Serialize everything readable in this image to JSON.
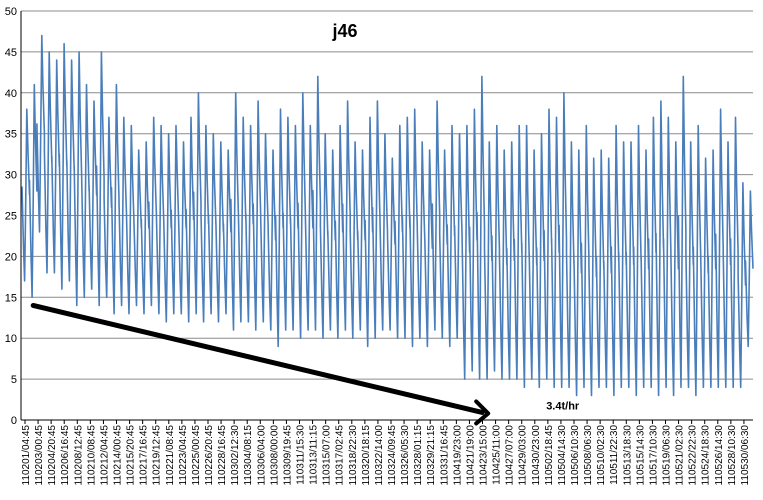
{
  "chart_data": {
    "type": "line",
    "title": "j46",
    "xlabel": "",
    "ylabel": "",
    "ylim": [
      0,
      50
    ],
    "yticks": [
      0,
      5,
      10,
      15,
      20,
      25,
      30,
      35,
      40,
      45,
      50
    ],
    "grid": true,
    "legend": "none",
    "series_color": "#4a7ebb",
    "x_tick_labels": [
      "110201/04:45",
      "110203/00:45",
      "110204/20:45",
      "110206/16:45",
      "110208/12:45",
      "110210/08:45",
      "110212/04:45",
      "110214/00:45",
      "110215/20:45",
      "110217/16:45",
      "110219/12:45",
      "110221/08:45",
      "110223/04:45",
      "110225/00:45",
      "110226/20:45",
      "110228/16:45",
      "110302/12:30",
      "110304/08:15",
      "110306/04:00",
      "110308/00:00",
      "110309/19:45",
      "110311/15:30",
      "110313/11:15",
      "110315/07:00",
      "110317/02:45",
      "110318/22:30",
      "110320/18:15",
      "110322/14:00",
      "110324/09:45",
      "110326/05:30",
      "110328/01:15",
      "110329/21:15",
      "110331/16:45",
      "110419/23:00",
      "110421/19:00",
      "110423/15:00",
      "110425/11:00",
      "110427/07:00",
      "110429/03:00",
      "110430/23:00",
      "110502/18:45",
      "110504/14:30",
      "110506/10:30",
      "110508/06:30",
      "110510/02:30",
      "110511/22:30",
      "110513/18:30",
      "110515/14:30",
      "110517/10:30",
      "110519/06:30",
      "110521/02:30",
      "110522/22:30",
      "110524/18:30",
      "110526/14:30",
      "110528/10:30",
      "110530/06:30"
    ],
    "daily_cycles": [
      {
        "min": 17,
        "max": 38
      },
      {
        "min": 15,
        "max": 41
      },
      {
        "min": 23,
        "max": 47
      },
      {
        "min": 18,
        "max": 45
      },
      {
        "min": 18,
        "max": 44
      },
      {
        "min": 16,
        "max": 46
      },
      {
        "min": 17,
        "max": 44
      },
      {
        "min": 14,
        "max": 45
      },
      {
        "min": 15,
        "max": 41
      },
      {
        "min": 16,
        "max": 39
      },
      {
        "min": 14,
        "max": 45
      },
      {
        "min": 15,
        "max": 37
      },
      {
        "min": 13,
        "max": 41
      },
      {
        "min": 14,
        "max": 37
      },
      {
        "min": 13,
        "max": 36
      },
      {
        "min": 14,
        "max": 33
      },
      {
        "min": 13,
        "max": 34
      },
      {
        "min": 14,
        "max": 37
      },
      {
        "min": 13,
        "max": 36
      },
      {
        "min": 12,
        "max": 35
      },
      {
        "min": 13,
        "max": 36
      },
      {
        "min": 13,
        "max": 34
      },
      {
        "min": 12,
        "max": 37
      },
      {
        "min": 13,
        "max": 40
      },
      {
        "min": 12,
        "max": 36
      },
      {
        "min": 13,
        "max": 35
      },
      {
        "min": 12,
        "max": 34
      },
      {
        "min": 13,
        "max": 33
      },
      {
        "min": 11,
        "max": 40
      },
      {
        "min": 12,
        "max": 37
      },
      {
        "min": 12,
        "max": 36
      },
      {
        "min": 11,
        "max": 39
      },
      {
        "min": 12,
        "max": 35
      },
      {
        "min": 11,
        "max": 33
      },
      {
        "min": 9,
        "max": 38
      },
      {
        "min": 11,
        "max": 37
      },
      {
        "min": 11,
        "max": 36
      },
      {
        "min": 10,
        "max": 40
      },
      {
        "min": 11,
        "max": 36
      },
      {
        "min": 11,
        "max": 42
      },
      {
        "min": 10,
        "max": 35
      },
      {
        "min": 11,
        "max": 33
      },
      {
        "min": 10,
        "max": 36
      },
      {
        "min": 11,
        "max": 39
      },
      {
        "min": 10,
        "max": 34
      },
      {
        "min": 11,
        "max": 33
      },
      {
        "min": 9,
        "max": 37
      },
      {
        "min": 10,
        "max": 39
      },
      {
        "min": 11,
        "max": 35
      },
      {
        "min": 11,
        "max": 32
      },
      {
        "min": 10,
        "max": 36
      },
      {
        "min": 10,
        "max": 37
      },
      {
        "min": 9,
        "max": 38
      },
      {
        "min": 10,
        "max": 34
      },
      {
        "min": 9,
        "max": 33
      },
      {
        "min": 11,
        "max": 39
      },
      {
        "min": 10,
        "max": 33
      },
      {
        "min": 9,
        "max": 36
      },
      {
        "min": 10,
        "max": 35
      },
      {
        "min": 5,
        "max": 36
      },
      {
        "min": 6,
        "max": 38
      },
      {
        "min": 5,
        "max": 42
      },
      {
        "min": 5,
        "max": 34
      },
      {
        "min": 6,
        "max": 36
      },
      {
        "min": 5,
        "max": 33
      },
      {
        "min": 5,
        "max": 34
      },
      {
        "min": 5,
        "max": 36
      },
      {
        "min": 4,
        "max": 36
      },
      {
        "min": 5,
        "max": 33
      },
      {
        "min": 4,
        "max": 35
      },
      {
        "min": 5,
        "max": 38
      },
      {
        "min": 4,
        "max": 37
      },
      {
        "min": 4,
        "max": 40
      },
      {
        "min": 4,
        "max": 34
      },
      {
        "min": 3,
        "max": 33
      },
      {
        "min": 4,
        "max": 36
      },
      {
        "min": 3,
        "max": 32
      },
      {
        "min": 4,
        "max": 33
      },
      {
        "min": 4,
        "max": 32
      },
      {
        "min": 3,
        "max": 36
      },
      {
        "min": 4,
        "max": 34
      },
      {
        "min": 4,
        "max": 34
      },
      {
        "min": 3,
        "max": 36
      },
      {
        "min": 4,
        "max": 33
      },
      {
        "min": 4,
        "max": 37
      },
      {
        "min": 3,
        "max": 39
      },
      {
        "min": 4,
        "max": 37
      },
      {
        "min": 3,
        "max": 34
      },
      {
        "min": 4,
        "max": 42
      },
      {
        "min": 4,
        "max": 34
      },
      {
        "min": 3,
        "max": 36
      },
      {
        "min": 4,
        "max": 32
      },
      {
        "min": 4,
        "max": 33
      },
      {
        "min": 4,
        "max": 38
      },
      {
        "min": 4,
        "max": 34
      },
      {
        "min": 4,
        "max": 37
      },
      {
        "min": 4,
        "max": 29
      },
      {
        "min": 9,
        "max": 28
      }
    ],
    "annotation": {
      "text": "3.4t/hr",
      "arrow_from": {
        "day_index": 1,
        "value": 14
      },
      "arrow_to": {
        "day_index": 62,
        "value": 0.8
      }
    }
  }
}
